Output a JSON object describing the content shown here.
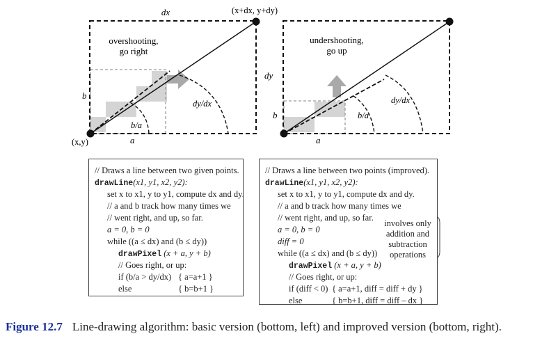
{
  "diagram": {
    "left": {
      "label_dx": "dx",
      "label_endpoint": "(x+dx, y+dy)",
      "label_note_line1": "overshooting,",
      "label_note_line2": "go right",
      "label_b": "b",
      "label_ba": "b/a",
      "label_dydx": "dy/dx",
      "label_origin": "(x,y)",
      "label_a": "a"
    },
    "right": {
      "label_dy": "dy",
      "label_note_line1": "undershooting,",
      "label_note_line2": "go up",
      "label_b": "b",
      "label_ba": "b/a",
      "label_dydx": "dy/dx",
      "label_a": "a"
    },
    "colors": {
      "gray_fill": "#d4d4d4",
      "arrow_gray": "#a9a9a9",
      "line": "#111111",
      "caption_accent": "#1a2f9c"
    }
  },
  "code_basic": {
    "l1": "// Draws a line between two given points.",
    "l2_fn": "drawLine",
    "l2_args": "(x1, y1, x2, y2):",
    "l3": "set x to x1, y to y1, compute dx and dy.",
    "l4": "// a and b track how many times we",
    "l5": "// went right, and up, so far.",
    "l6": "a = 0, b = 0",
    "l7": "while ((a ≤ dx) and (b ≤ dy))",
    "l8_fn": "drawPixel",
    "l8_args": "(x + a, y + b)",
    "l9": "// Goes right, or up:",
    "l10_cond": "if (b/a > dy/dx)",
    "l10_act": "{ a=a+1 }",
    "l11_cond": "else",
    "l11_act": "{ b=b+1 }"
  },
  "code_improved": {
    "l1": "// Draws a line between two points (improved).",
    "l2_fn": "drawLine",
    "l2_args": "(x1, y1, x2, y2):",
    "l3": "set x to x1, y to y1, compute dx and dy.",
    "l4": "// a and b track how many times we",
    "l5": "// went right, and up, so far.",
    "l6": "a = 0, b = 0",
    "l7": "diff = 0",
    "l8": "while ((a ≤ dx) and (b ≤ dy))",
    "l9_fn": "drawPixel",
    "l9_args": "(x + a, y + b)",
    "l10": "// Goes right, or up:",
    "l11_cond": "if (diff < 0)",
    "l11_act": "{ a=a+1, diff = diff + dy }",
    "l12_cond": "else",
    "l12_act": "{ b=b+1, diff = diff – dx }",
    "callout_line1": "involves only",
    "callout_line2": "addition and",
    "callout_line3": "subtraction",
    "callout_line4": "operations"
  },
  "caption": {
    "number": "Figure 12.7",
    "text": "Line-drawing algorithm: basic version (bottom, left) and improved version (bottom, right)."
  }
}
